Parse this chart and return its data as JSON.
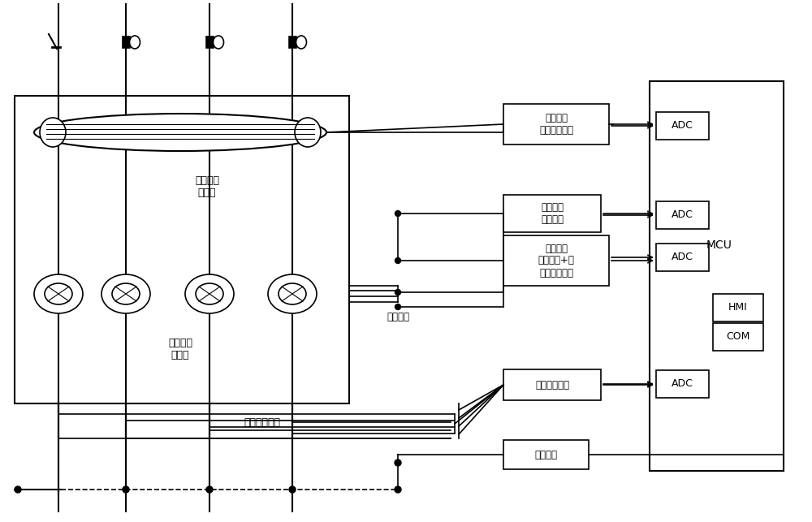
{
  "bg_color": "#ffffff",
  "line_color": "#000000",
  "text_color": "#000000",
  "figsize": [
    10.0,
    6.43
  ],
  "dpi": 100,
  "labels": {
    "second_ct": "第二电流\n互感器",
    "first_ct": "第一电流\n互感器",
    "four_in_one": "四合一互感器",
    "secondary_current": "二次电流",
    "residual_box": "剩余电流\n采样调理电路",
    "measure_box": "计量采样\n调理电路",
    "protect_box": "保护采样\n调理电路+互\n感器供电电路",
    "voltage_box": "电压采样电路",
    "switch_box": "开关电源",
    "adc1": "ADC",
    "adc2": "ADC",
    "adc3": "ADC",
    "adc4": "ADC",
    "mcu": "MCU",
    "hmi": "HMI",
    "com": "COM"
  }
}
